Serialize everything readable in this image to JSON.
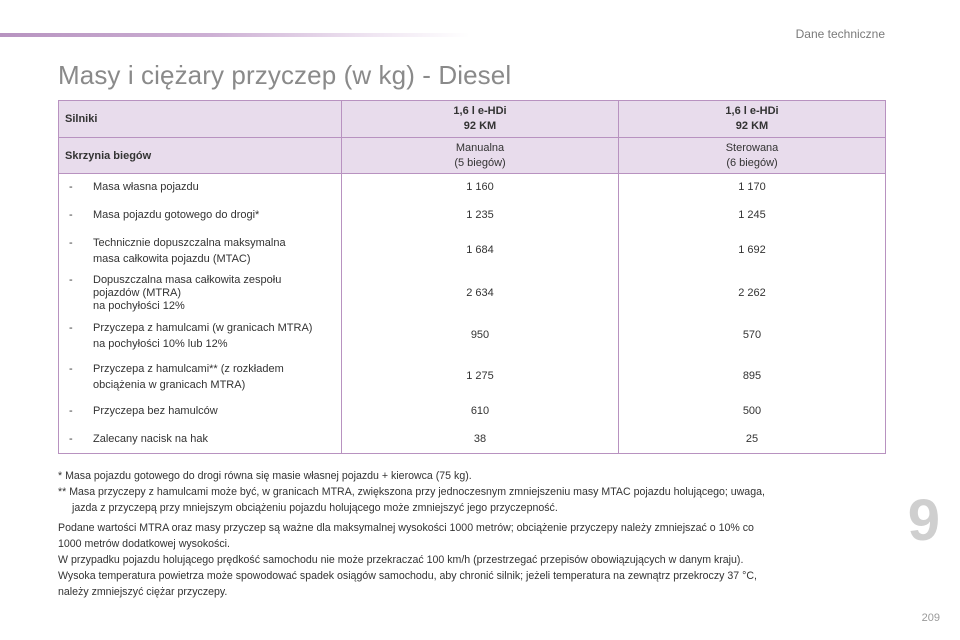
{
  "header": {
    "section_label": "Dane techniczne",
    "accent_color": "#b793c0"
  },
  "title": "Masy i ciężary przyczep (w kg) - Diesel",
  "table": {
    "engine_label": "Silniki",
    "engine_col1_line1": "1,6 l e-HDi",
    "engine_col1_line2": "92 KM",
    "engine_col2_line1": "1,6 l e-HDi",
    "engine_col2_line2": "92 KM",
    "gearbox_label": "Skrzynia biegów",
    "gearbox_col1_line1": "Manualna",
    "gearbox_col1_line2": "(5 biegów)",
    "gearbox_col2_line1": "Sterowana",
    "gearbox_col2_line2": "(6 biegów)",
    "rows": [
      {
        "dash": "-",
        "label": "Masa własna pojazdu",
        "v1": "1 160",
        "v2": "1 170"
      },
      {
        "dash": "-",
        "label": "Masa pojazdu gotowego do drogi*",
        "v1": "1 235",
        "v2": "1 245"
      },
      {
        "dash": "-",
        "label_line1": "Technicznie dopuszczalna maksymalna",
        "label_line2": "masa całkowita pojazdu (MTAC)",
        "v1": "1 684",
        "v2": "1 692"
      },
      {
        "dash": "-",
        "label_line1": "Dopuszczalna masa całkowita zespołu",
        "label_line2": "pojazdów (MTRA)",
        "label_line3": "na pochyłości 12%",
        "v1": "2 634",
        "v2": "2 262"
      },
      {
        "dash": "-",
        "label_line1": "Przyczepa z hamulcami (w granicach MTRA)",
        "label_line2": "na pochyłości 10% lub 12%",
        "v1": "950",
        "v2": "570"
      },
      {
        "dash": "-",
        "label_line1": "Przyczepa z hamulcami** (z rozkładem",
        "label_line2": "obciążenia w granicach MTRA)",
        "v1": "1 275",
        "v2": "895"
      },
      {
        "dash": "-",
        "label": "Przyczepa bez hamulców",
        "v1": "610",
        "v2": "500"
      },
      {
        "dash": "-",
        "label": "Zalecany nacisk na hak",
        "v1": "38",
        "v2": "25"
      }
    ]
  },
  "footnotes": {
    "note1": "* Masa pojazdu gotowego do drogi równa się masie własnej pojazdu + kierowca (75 kg).",
    "note2_line1": "** Masa przyczepy z hamulcami może być, w granicach MTRA, zwiększona przy jednoczesnym zmniejszeniu masy MTAC pojazdu holującego; uwaga,",
    "note2_line2": "jazda z przyczepą przy mniejszym obciążeniu pojazdu holującego może zmniejszyć jego przyczepność.",
    "para1_line1": "Podane wartości MTRA oraz masy przyczep są ważne dla maksymalnej wysokości 1000 metrów; obciążenie przyczepy należy zmniejszać o 10% co",
    "para1_line2": "1000 metrów dodatkowej wysokości.",
    "para2": "W przypadku pojazdu holującego prędkość samochodu nie może przekraczać 100 km/h (przestrzegać przepisów obowiązujących w danym kraju).",
    "para3_line1": "Wysoka temperatura powietrza może spowodować spadek osiągów samochodu, aby chronić silnik; jeżeli temperatura na zewnątrz przekroczy 37 °C,",
    "para3_line2": "należy zmniejszyć ciężar przyczepy."
  },
  "chapter_number": "9",
  "page_number": "209"
}
